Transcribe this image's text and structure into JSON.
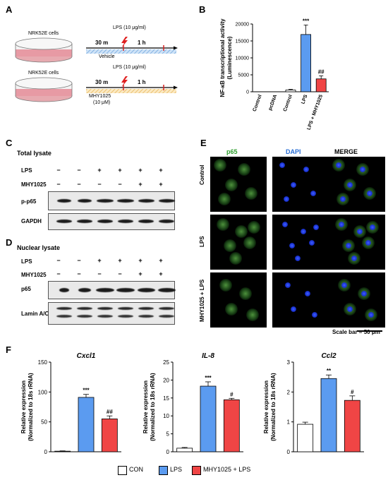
{
  "panels": {
    "A": "A",
    "B": "B",
    "C": "C",
    "D": "D",
    "E": "E",
    "F": "F"
  },
  "panel_a": {
    "row1_cells": "NRK52E cells",
    "row1_lps": "LPS (10 μg/ml)",
    "row1_t1": "30 m",
    "row1_t2": "1 h",
    "row1_treat": "Vehicle",
    "row2_cells": "NRK52E cells",
    "row2_lps": "LPS (10 μg/ml)",
    "row2_t1": "30 m",
    "row2_t2": "1 h",
    "row2_treat": "MHY1025",
    "row2_dose": "(10 μM)"
  },
  "panel_c": {
    "title": "Total lysate",
    "lps_label": "LPS",
    "mhy_label": "MHY1025",
    "lps_signs": [
      "−",
      "−",
      "+",
      "+",
      "+",
      "+"
    ],
    "mhy_signs": [
      "−",
      "−",
      "−",
      "−",
      "+",
      "+"
    ],
    "blot1": "p-p65",
    "blot2": "GAPDH"
  },
  "panel_d": {
    "title": "Nuclear lysate",
    "lps_label": "LPS",
    "mhy_label": "MHY1025",
    "lps_signs": [
      "−",
      "−",
      "+",
      "+",
      "+",
      "+"
    ],
    "mhy_signs": [
      "−",
      "−",
      "−",
      "−",
      "+",
      "+"
    ],
    "blot1": "p65",
    "blot2": "Lamin A/C"
  },
  "panel_e": {
    "col1": "p65",
    "col2": "DAPI",
    "col3": "MERGE",
    "row1": "Control",
    "row2": "LPS",
    "row3": "MHY1025 + LPS",
    "scale": "Scale bar = 50 μm",
    "col1_color": "#2e9e2e",
    "col2_color": "#2a6fd6"
  },
  "chart_data": [
    {
      "type": "bar",
      "panel": "B",
      "ylabel": "NF-κB transcriptional activity (Luminescence)",
      "categories": [
        "Control",
        "pcDNA",
        "Control",
        "LPS",
        "LPS + MHY1025"
      ],
      "values": [
        0,
        0,
        500,
        16900,
        3800
      ],
      "errors": [
        0,
        0,
        200,
        2800,
        900
      ],
      "colors": [
        "#ffffff",
        "#ffffff",
        "#ffffff",
        "#5b9bf0",
        "#f04545"
      ],
      "annotations": [
        "",
        "",
        "",
        "***",
        "##"
      ],
      "ylim": [
        0,
        20000
      ],
      "yticks": [
        "0",
        "5000",
        "10000",
        "15000",
        "20000"
      ]
    },
    {
      "type": "bar",
      "panel": "F",
      "title": "Cxcl1",
      "ylabel_line1": "Relative expression",
      "ylabel_line2": "(Normalized to 18s rRNA)",
      "values": [
        1,
        91,
        55
      ],
      "errors": [
        0.5,
        5,
        5
      ],
      "annotations": [
        "",
        "***",
        "##"
      ],
      "ylim": [
        0,
        150
      ],
      "yticks": [
        "0",
        "50",
        "100",
        "150"
      ]
    },
    {
      "type": "bar",
      "panel": "F",
      "title": "IL-8",
      "ylabel_line1": "Relative expression",
      "ylabel_line2": "(Normalized to 18s rRNA)",
      "values": [
        1,
        18.3,
        14.5
      ],
      "errors": [
        0.2,
        1.2,
        0.4
      ],
      "annotations": [
        "",
        "***",
        "#"
      ],
      "ylim": [
        0,
        25
      ],
      "yticks": [
        "0",
        "5",
        "10",
        "15",
        "20",
        "25"
      ]
    },
    {
      "type": "bar",
      "panel": "F",
      "title": "Ccl2",
      "ylabel_line1": "Relative expression",
      "ylabel_line2": "(Normalized to 18s rRNA)",
      "values": [
        0.92,
        2.45,
        1.72
      ],
      "errors": [
        0.07,
        0.12,
        0.15
      ],
      "annotations": [
        "",
        "**",
        "#"
      ],
      "ylim": [
        0,
        3
      ],
      "yticks": [
        "0",
        "1",
        "2",
        "3"
      ]
    }
  ],
  "legend": {
    "items": [
      {
        "label": "CON",
        "color": "#ffffff"
      },
      {
        "label": "LPS",
        "color": "#5b9bf0"
      },
      {
        "label": "MHY1025 + LPS",
        "color": "#f04545"
      }
    ]
  }
}
